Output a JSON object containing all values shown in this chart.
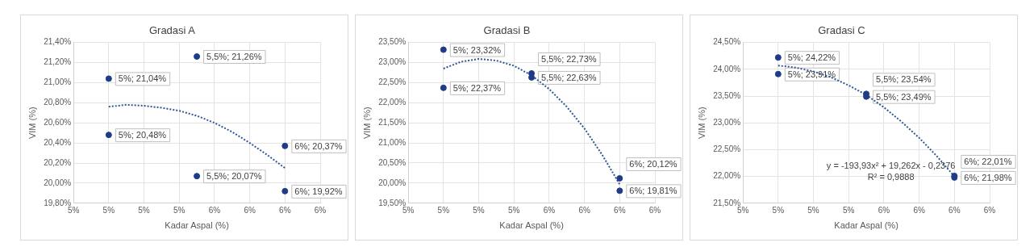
{
  "chart_data": [
    {
      "type": "scatter",
      "title": "Gradasi A",
      "xlabel": "Kadar Aspal (%)",
      "ylabel": "VIM (%)",
      "xlim": [
        4.8,
        6.2
      ],
      "xticks": [
        {
          "value": 4.8,
          "label": "5%"
        },
        {
          "value": 5.0,
          "label": "5%"
        },
        {
          "value": 5.2,
          "label": "5%"
        },
        {
          "value": 5.4,
          "label": "5%"
        },
        {
          "value": 5.6,
          "label": "6%"
        },
        {
          "value": 5.8,
          "label": "6%"
        },
        {
          "value": 6.0,
          "label": "6%"
        },
        {
          "value": 6.2,
          "label": "6%"
        }
      ],
      "ylim": [
        19.8,
        21.4
      ],
      "yticks": [
        {
          "value": 19.8,
          "label": "19,80%"
        },
        {
          "value": 20.0,
          "label": "20,00%"
        },
        {
          "value": 20.2,
          "label": "20,20%"
        },
        {
          "value": 20.4,
          "label": "20,40%"
        },
        {
          "value": 20.6,
          "label": "20,60%"
        },
        {
          "value": 20.8,
          "label": "20,80%"
        },
        {
          "value": 21.0,
          "label": "21,00%"
        },
        {
          "value": 21.2,
          "label": "21,20%"
        },
        {
          "value": 21.4,
          "label": "21,40%"
        }
      ],
      "grid": true,
      "series": [
        {
          "type": "scatter",
          "color": "#1f3c88",
          "marker": "circle",
          "x": [
            5,
            5,
            5.5,
            5.5,
            6,
            6
          ],
          "values": [
            21.04,
            20.48,
            21.26,
            20.07,
            20.37,
            19.92
          ],
          "value_labels": [
            "5%; 21,04%",
            "5%; 20,48%",
            "5,5%; 21,26%",
            "5,5%; 20,07%",
            "6%; 20,37%",
            "6%; 19,92%"
          ]
        },
        {
          "type": "line",
          "color": "#2f5597",
          "marker": "none",
          "line_style": "dotted",
          "x": [
            5,
            5.1,
            5.2,
            5.3,
            5.4,
            5.5,
            5.6,
            5.7,
            5.8,
            5.9,
            6
          ],
          "values": [
            20.76,
            20.78,
            20.77,
            20.75,
            20.72,
            20.67,
            20.6,
            20.51,
            20.4,
            20.28,
            20.15
          ]
        }
      ]
    },
    {
      "type": "scatter",
      "title": "Gradasi B",
      "xlabel": "Kadar Aspal (%)",
      "ylabel": "VIM (%)",
      "xlim": [
        4.8,
        6.2
      ],
      "xticks": [
        {
          "value": 4.8,
          "label": "5%"
        },
        {
          "value": 5.0,
          "label": "5%"
        },
        {
          "value": 5.2,
          "label": "5%"
        },
        {
          "value": 5.4,
          "label": "5%"
        },
        {
          "value": 5.6,
          "label": "6%"
        },
        {
          "value": 5.8,
          "label": "6%"
        },
        {
          "value": 6.0,
          "label": "6%"
        },
        {
          "value": 6.2,
          "label": "6%"
        }
      ],
      "ylim": [
        19.5,
        23.5
      ],
      "yticks": [
        {
          "value": 19.5,
          "label": "19,50%"
        },
        {
          "value": 20.0,
          "label": "20,00%"
        },
        {
          "value": 20.5,
          "label": "20,50%"
        },
        {
          "value": 21.0,
          "label": "21,00%"
        },
        {
          "value": 21.5,
          "label": "21,50%"
        },
        {
          "value": 22.0,
          "label": "22,00%"
        },
        {
          "value": 22.5,
          "label": "22,50%"
        },
        {
          "value": 23.0,
          "label": "23,00%"
        },
        {
          "value": 23.5,
          "label": "23,50%"
        }
      ],
      "grid": true,
      "series": [
        {
          "type": "scatter",
          "color": "#1f3c88",
          "marker": "circle",
          "x": [
            5,
            5,
            5.5,
            5.5,
            6,
            6
          ],
          "values": [
            23.32,
            22.37,
            22.73,
            22.63,
            20.12,
            19.81
          ],
          "value_labels": [
            "5%; 23,32%",
            "5%; 22,37%",
            "5,5%; 22,73%",
            "5,5%; 22,63%",
            "6%; 20,12%",
            "6%; 19,81%"
          ]
        },
        {
          "type": "line",
          "color": "#2f5597",
          "marker": "none",
          "line_style": "dotted",
          "x": [
            5,
            5.1,
            5.2,
            5.3,
            5.4,
            5.5,
            5.6,
            5.7,
            5.8,
            5.9,
            6
          ],
          "values": [
            22.85,
            23.02,
            23.09,
            23.05,
            22.92,
            22.68,
            22.34,
            21.9,
            21.36,
            20.71,
            19.97
          ]
        }
      ]
    },
    {
      "type": "scatter",
      "title": "Gradasi C",
      "xlabel": "Kadar Aspal (%)",
      "ylabel": "VIM (%)",
      "xlim": [
        4.8,
        6.2
      ],
      "xticks": [
        {
          "value": 4.8,
          "label": "5%"
        },
        {
          "value": 5.0,
          "label": "5%"
        },
        {
          "value": 5.2,
          "label": "5%"
        },
        {
          "value": 5.4,
          "label": "5%"
        },
        {
          "value": 5.6,
          "label": "6%"
        },
        {
          "value": 5.8,
          "label": "6%"
        },
        {
          "value": 6.0,
          "label": "6%"
        },
        {
          "value": 6.2,
          "label": "6%"
        }
      ],
      "ylim": [
        21.5,
        24.5
      ],
      "yticks": [
        {
          "value": 21.5,
          "label": "21,50%"
        },
        {
          "value": 22.0,
          "label": "22,00%"
        },
        {
          "value": 22.5,
          "label": "22,50%"
        },
        {
          "value": 23.0,
          "label": "23,00%"
        },
        {
          "value": 23.5,
          "label": "23,50%"
        },
        {
          "value": 24.0,
          "label": "24,00%"
        },
        {
          "value": 24.5,
          "label": "24,50%"
        }
      ],
      "grid": true,
      "annotations": [
        "y = -193,93x² + 19,262x - 0,2376",
        "R² = 0,9888"
      ],
      "series": [
        {
          "type": "scatter",
          "color": "#1f3c88",
          "marker": "circle",
          "x": [
            5,
            5,
            5.5,
            5.5,
            6,
            6
          ],
          "values": [
            24.22,
            23.91,
            23.54,
            23.49,
            22.01,
            21.98
          ],
          "value_labels": [
            "5%; 24,22%",
            "5%; 23,91%",
            "5,5%; 23,54%",
            "5,5%; 23,49%",
            "6%; 22,01%",
            "6%; 21,98%"
          ]
        },
        {
          "type": "line",
          "color": "#2f5597",
          "marker": "none",
          "line_style": "dotted",
          "x": [
            5,
            5.1,
            5.2,
            5.3,
            5.4,
            5.5,
            5.6,
            5.7,
            5.8,
            5.9,
            6
          ],
          "values": [
            24.07,
            24.03,
            23.96,
            23.85,
            23.7,
            23.52,
            23.29,
            23.02,
            22.72,
            22.38,
            22.0
          ]
        }
      ]
    }
  ]
}
